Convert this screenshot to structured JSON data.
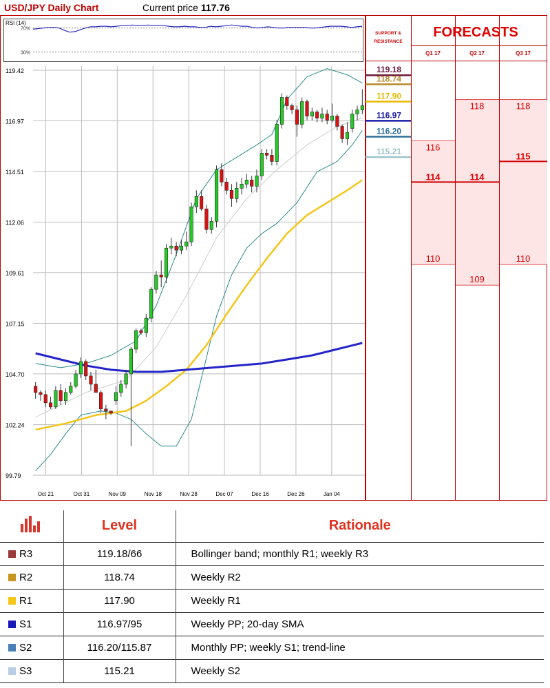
{
  "header": {
    "title": "USD/JPY Daily Chart",
    "price_label": "Current price",
    "price_value": "117.76"
  },
  "colors": {
    "title": "#c00000",
    "bull_candle": "#22cc22",
    "bear_candle": "#dd1111",
    "bollinger": "#2a8a8a",
    "sma_mid": "#cccccc",
    "sma_yellow": "#f5c518",
    "sma_blue": "#2424c8",
    "forecast_fill": "#fde5e5",
    "forecast_text": "#e00000"
  },
  "chart_data": {
    "type": "candlestick",
    "rsi": {
      "label": "RSI (14)",
      "levels": [
        "70%",
        "30%"
      ],
      "values": [
        68,
        69,
        70,
        71,
        71,
        70,
        66,
        63,
        64,
        67,
        70,
        72,
        72,
        73,
        73,
        72,
        73,
        74,
        74,
        75,
        74,
        74,
        75,
        74,
        74,
        74,
        73,
        72,
        72,
        73,
        72,
        72,
        71,
        71,
        73,
        72,
        73,
        74,
        75,
        74,
        73,
        73,
        71,
        70,
        71,
        72,
        71,
        70,
        70,
        71,
        71,
        71,
        71,
        70,
        70,
        71,
        72,
        73,
        73,
        73,
        72,
        71,
        72,
        73
      ]
    },
    "y_ticks": [
      99.79,
      102.24,
      104.7,
      107.15,
      109.61,
      112.06,
      114.51,
      116.97,
      119.42
    ],
    "ylim": [
      99.79,
      119.42
    ],
    "x_ticks": [
      "Oct 21",
      "Oct 31",
      "Nov 09",
      "Nov 18",
      "Nov 28",
      "Dec 07",
      "Dec 16",
      "Dec 26",
      "Jan 04"
    ],
    "candles": [
      [
        104.1,
        104.3,
        103.5,
        103.8
      ],
      [
        103.8,
        103.9,
        103.4,
        103.7
      ],
      [
        103.7,
        103.9,
        103.1,
        103.3
      ],
      [
        103.3,
        103.6,
        103.0,
        103.1
      ],
      [
        103.1,
        104.1,
        103.0,
        103.9
      ],
      [
        103.9,
        104.2,
        103.2,
        103.4
      ],
      [
        103.4,
        104.0,
        103.2,
        103.8
      ],
      [
        103.8,
        104.3,
        103.7,
        104.1
      ],
      [
        104.1,
        104.9,
        104.0,
        104.7
      ],
      [
        104.7,
        105.5,
        104.5,
        105.3
      ],
      [
        105.3,
        105.4,
        104.4,
        104.6
      ],
      [
        104.6,
        104.8,
        103.9,
        104.2
      ],
      [
        104.2,
        104.9,
        103.8,
        103.8
      ],
      [
        103.8,
        103.9,
        102.8,
        103.0
      ],
      [
        103.0,
        103.2,
        102.5,
        102.9
      ],
      [
        102.9,
        102.9,
        102.7,
        102.8
      ],
      [
        103.4,
        104.1,
        103.2,
        103.8
      ],
      [
        103.8,
        104.4,
        103.6,
        104.2
      ],
      [
        104.2,
        104.9,
        104.0,
        104.7
      ],
      [
        104.7,
        106.0,
        101.2,
        105.9
      ],
      [
        105.9,
        106.9,
        105.7,
        106.8
      ],
      [
        106.8,
        106.9,
        106.6,
        106.7
      ],
      [
        106.7,
        107.6,
        106.5,
        107.4
      ],
      [
        107.4,
        108.9,
        107.2,
        108.8
      ],
      [
        108.8,
        109.7,
        108.6,
        109.5
      ],
      [
        109.5,
        110.2,
        108.9,
        109.4
      ],
      [
        109.4,
        111.0,
        109.1,
        110.8
      ],
      [
        110.8,
        111.3,
        110.5,
        110.9
      ],
      [
        110.9,
        111.1,
        110.4,
        110.7
      ],
      [
        110.7,
        111.2,
        110.5,
        110.9
      ],
      [
        110.9,
        111.6,
        110.7,
        111.1
      ],
      [
        111.1,
        113.0,
        110.9,
        112.8
      ],
      [
        112.8,
        113.6,
        112.5,
        113.3
      ],
      [
        113.3,
        113.6,
        112.6,
        112.7
      ],
      [
        112.7,
        112.9,
        111.5,
        111.7
      ],
      [
        111.7,
        112.3,
        111.5,
        112.1
      ],
      [
        112.1,
        114.8,
        111.8,
        114.6
      ],
      [
        114.6,
        114.9,
        113.8,
        114.0
      ],
      [
        114.0,
        114.2,
        113.4,
        113.6
      ],
      [
        113.6,
        113.9,
        112.8,
        113.2
      ],
      [
        113.2,
        114.0,
        113.0,
        113.7
      ],
      [
        113.7,
        114.2,
        113.4,
        113.9
      ],
      [
        113.9,
        114.4,
        113.7,
        114.1
      ],
      [
        114.1,
        114.3,
        113.5,
        113.8
      ],
      [
        113.8,
        114.6,
        113.5,
        114.3
      ],
      [
        114.3,
        115.6,
        114.1,
        115.4
      ],
      [
        115.4,
        115.6,
        115.1,
        115.3
      ],
      [
        115.3,
        115.6,
        114.8,
        115.0
      ],
      [
        115.0,
        117.0,
        114.8,
        116.8
      ],
      [
        116.8,
        118.3,
        116.6,
        118.1
      ],
      [
        118.1,
        118.2,
        117.5,
        117.7
      ],
      [
        117.7,
        117.8,
        117.3,
        117.5
      ],
      [
        117.5,
        117.7,
        116.2,
        116.8
      ],
      [
        116.8,
        118.1,
        116.6,
        117.9
      ],
      [
        117.9,
        118.0,
        117.0,
        117.2
      ],
      [
        117.2,
        117.6,
        117.0,
        117.4
      ],
      [
        117.4,
        117.5,
        116.9,
        117.1
      ],
      [
        117.1,
        117.6,
        116.9,
        117.3
      ],
      [
        117.3,
        117.5,
        116.8,
        117.0
      ],
      [
        117.0,
        117.8,
        116.9,
        117.2
      ],
      [
        117.2,
        117.3,
        116.5,
        116.7
      ],
      [
        116.7,
        116.8,
        115.9,
        116.1
      ],
      [
        116.1,
        116.9,
        115.8,
        116.4
      ],
      [
        116.6,
        117.5,
        116.4,
        117.3
      ],
      [
        117.3,
        117.7,
        117.0,
        117.5
      ],
      [
        117.5,
        118.5,
        117.3,
        117.7
      ]
    ],
    "bollinger_upper": [
      [
        0,
        105.2
      ],
      [
        5,
        105.0
      ],
      [
        10,
        105.2
      ],
      [
        15,
        105.6
      ],
      [
        20,
        106.3
      ],
      [
        24,
        108.0
      ],
      [
        28,
        110.5
      ],
      [
        32,
        113.2
      ],
      [
        36,
        114.6
      ],
      [
        40,
        115.2
      ],
      [
        44,
        115.8
      ],
      [
        47,
        116.3
      ],
      [
        50,
        118.0
      ],
      [
        54,
        119.1
      ],
      [
        58,
        119.5
      ],
      [
        62,
        119.2
      ],
      [
        65,
        118.8
      ]
    ],
    "bollinger_lower": [
      [
        0,
        100.0
      ],
      [
        3,
        100.8
      ],
      [
        6,
        101.8
      ],
      [
        9,
        102.7
      ],
      [
        13,
        102.9
      ],
      [
        16,
        102.8
      ],
      [
        19,
        102.5
      ],
      [
        22,
        101.8
      ],
      [
        25,
        101.2
      ],
      [
        28,
        101.2
      ],
      [
        31,
        102.5
      ],
      [
        33,
        104.5
      ],
      [
        36,
        107.5
      ],
      [
        39,
        109.5
      ],
      [
        42,
        110.8
      ],
      [
        45,
        111.5
      ],
      [
        48,
        112.0
      ],
      [
        52,
        113.0
      ],
      [
        56,
        114.5
      ],
      [
        60,
        115.0
      ],
      [
        63,
        115.8
      ],
      [
        65,
        116.5
      ]
    ],
    "sma_mid": [
      [
        0,
        102.6
      ],
      [
        10,
        103.8
      ],
      [
        18,
        104.4
      ],
      [
        24,
        106.0
      ],
      [
        30,
        108.5
      ],
      [
        36,
        111.3
      ],
      [
        42,
        113.2
      ],
      [
        48,
        114.6
      ],
      [
        54,
        115.8
      ],
      [
        60,
        116.7
      ],
      [
        65,
        117.1
      ]
    ],
    "sma_yellow": [
      [
        0,
        102.0
      ],
      [
        6,
        102.3
      ],
      [
        12,
        102.7
      ],
      [
        18,
        102.9
      ],
      [
        22,
        103.4
      ],
      [
        26,
        104.1
      ],
      [
        30,
        104.9
      ],
      [
        34,
        106.1
      ],
      [
        38,
        107.6
      ],
      [
        42,
        109.0
      ],
      [
        46,
        110.3
      ],
      [
        50,
        111.5
      ],
      [
        54,
        112.4
      ],
      [
        58,
        113.0
      ],
      [
        62,
        113.6
      ],
      [
        65,
        114.1
      ]
    ],
    "sma_blue": [
      [
        0,
        105.7
      ],
      [
        5,
        105.4
      ],
      [
        10,
        105.1
      ],
      [
        15,
        104.9
      ],
      [
        20,
        104.8
      ],
      [
        25,
        104.8
      ],
      [
        30,
        104.9
      ],
      [
        35,
        105.0
      ],
      [
        40,
        105.1
      ],
      [
        45,
        105.2
      ],
      [
        50,
        105.4
      ],
      [
        55,
        105.6
      ],
      [
        60,
        105.9
      ],
      [
        65,
        106.2
      ]
    ]
  },
  "support_resistance": {
    "title": "SUPPORT & RESISTANCE",
    "levels": [
      {
        "label": "119.18",
        "value": 119.18,
        "color": "#6b1a3a"
      },
      {
        "label": "118.74",
        "value": 118.74,
        "color": "#b8872a"
      },
      {
        "label": "117.90",
        "value": 117.9,
        "color": "#e8b800"
      },
      {
        "label": "116.97",
        "value": 116.97,
        "color": "#1a1aa8"
      },
      {
        "label": "116.20",
        "value": 116.2,
        "color": "#2c6e9c"
      },
      {
        "label": "115.21",
        "value": 115.21,
        "color": "#9cc4cc"
      }
    ]
  },
  "forecasts": {
    "title": "FORECASTS",
    "columns": [
      {
        "label": "Q1 17",
        "high": 116,
        "mid": 114,
        "low": 110,
        "mid_label": "114",
        "high_label": "116",
        "low_label": "110"
      },
      {
        "label": "Q2 17",
        "high": 118,
        "mid": 114,
        "low": 109,
        "mid_label": "114",
        "high_label": "118",
        "low_label": "109"
      },
      {
        "label": "Q3 17",
        "high": 118,
        "mid": 115,
        "low": 110,
        "mid_label": "115",
        "high_label": "118",
        "low_label": "110"
      }
    ]
  },
  "table": {
    "headers": {
      "level": "Level",
      "rationale": "Rationale"
    },
    "icon": "bar-chart-icon",
    "rows": [
      {
        "label": "R3",
        "color": "#9b3a3a",
        "level": "119.18/66",
        "rationale": "Bollinger band; monthly R1; weekly R3"
      },
      {
        "label": "R2",
        "color": "#c8961e",
        "level": "118.74",
        "rationale": "Weekly R2"
      },
      {
        "label": "R1",
        "color": "#f5c518",
        "level": "117.90",
        "rationale": "Weekly R1"
      },
      {
        "label": "S1",
        "color": "#1818b8",
        "level": "116.97/95",
        "rationale": "Weekly PP; 20-day SMA"
      },
      {
        "label": "S2",
        "color": "#4a80b8",
        "level": "116.20/115.87",
        "rationale": "Monthly PP; weekly S1; trend-line"
      },
      {
        "label": "S3",
        "color": "#b8cce4",
        "level": "115.21",
        "rationale": "Weekly S2"
      }
    ]
  }
}
